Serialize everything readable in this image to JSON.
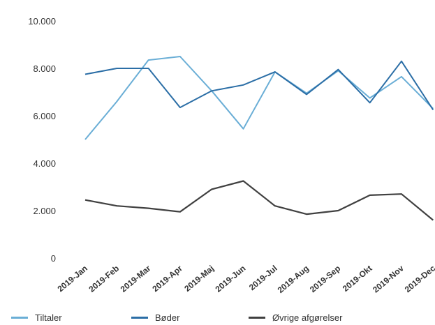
{
  "chart_data": {
    "type": "line",
    "categories": [
      "2019-Jan",
      "2019-Feb",
      "2019-Mar",
      "2019-Apr",
      "2019-Maj",
      "2019-Jun",
      "2019-Jul",
      "2019-Aug",
      "2019-Sep",
      "2019-Okt",
      "2019-Nov",
      "2019-Dec"
    ],
    "y_tick_labels": [
      "0",
      "2.000",
      "4.000",
      "6.000",
      "8.000",
      "10.000"
    ],
    "ylim": [
      0,
      10000
    ],
    "grid": false,
    "legend_position": "bottom",
    "series": [
      {
        "name": "Tiltaler",
        "color": "#6aaed6",
        "values": [
          5000,
          6600,
          8350,
          8500,
          7050,
          5450,
          7850,
          6950,
          7900,
          6750,
          7650,
          6300
        ]
      },
      {
        "name": "Bøder",
        "color": "#2b6ea6",
        "values": [
          7750,
          8000,
          8000,
          6350,
          7050,
          7300,
          7850,
          6900,
          7950,
          6550,
          8300,
          6250
        ]
      },
      {
        "name": "Øvrige afgørelser",
        "color": "#404040",
        "values": [
          2450,
          2200,
          2100,
          1950,
          2900,
          3250,
          2200,
          1850,
          2000,
          2650,
          2700,
          1600
        ]
      }
    ]
  }
}
